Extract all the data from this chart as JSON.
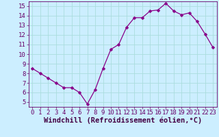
{
  "x": [
    0,
    1,
    2,
    3,
    4,
    5,
    6,
    7,
    8,
    9,
    10,
    11,
    12,
    13,
    14,
    15,
    16,
    17,
    18,
    19,
    20,
    21,
    22,
    23
  ],
  "y": [
    8.5,
    8.0,
    7.5,
    7.0,
    6.5,
    6.5,
    6.0,
    4.8,
    6.3,
    8.5,
    10.5,
    11.0,
    12.8,
    13.8,
    13.8,
    14.5,
    14.6,
    15.3,
    14.5,
    14.1,
    14.3,
    13.4,
    12.1,
    10.7
  ],
  "line_color": "#880088",
  "marker": "D",
  "marker_size": 2.5,
  "bg_color": "#cceeff",
  "grid_color": "#aadddd",
  "xlabel": "Windchill (Refroidissement éolien,°C)",
  "ylim": [
    4.5,
    15.5
  ],
  "xlim": [
    -0.5,
    23.5
  ],
  "yticks": [
    5,
    6,
    7,
    8,
    9,
    10,
    11,
    12,
    13,
    14,
    15
  ],
  "xticks": [
    0,
    1,
    2,
    3,
    4,
    5,
    6,
    7,
    8,
    9,
    10,
    11,
    12,
    13,
    14,
    15,
    16,
    17,
    18,
    19,
    20,
    21,
    22,
    23
  ],
  "tick_fontsize": 6.5,
  "xlabel_fontsize": 7.5,
  "axis_text_color": "#660066",
  "label_color": "#440044"
}
